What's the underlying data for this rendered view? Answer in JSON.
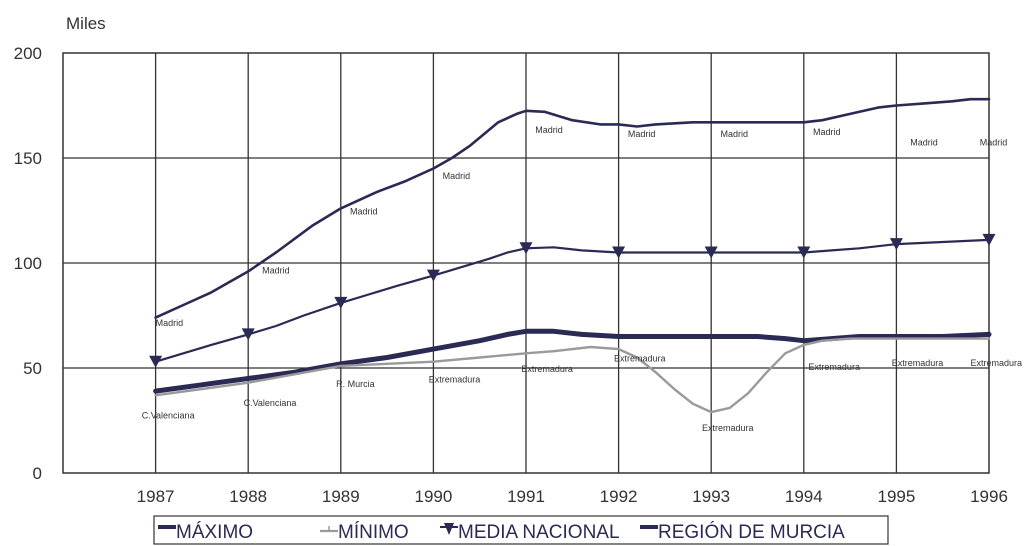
{
  "chart_data": {
    "type": "line",
    "unit_label": "Miles",
    "x": [
      1987,
      1988,
      1989,
      1990,
      1991,
      1992,
      1993,
      1994,
      1995,
      1996
    ],
    "x_tick_labels": [
      "1987",
      "1988",
      "1989",
      "1990",
      "1991",
      "1992",
      "1993",
      "1994",
      "1995",
      "1996"
    ],
    "y_tick_labels": [
      "0",
      "50",
      "100",
      "150",
      "200"
    ],
    "ylim": [
      0,
      200
    ],
    "xlim": [
      1986,
      1996
    ],
    "grid": true,
    "legend_position": "bottom",
    "series": [
      {
        "name": "MÁXIMO",
        "color": "#2a2a55",
        "x": [
          1987,
          1987.3,
          1987.6,
          1988,
          1988.3,
          1988.7,
          1989,
          1989.4,
          1989.7,
          1990,
          1990.2,
          1990.4,
          1990.7,
          1990.9,
          1991,
          1991.2,
          1991.5,
          1991.8,
          1992,
          1992.2,
          1992.4,
          1992.8,
          1993,
          1993.3,
          1993.6,
          1994,
          1994.2,
          1994.5,
          1994.8,
          1995,
          1995.3,
          1995.6,
          1995.8,
          1996
        ],
        "values": [
          74,
          80,
          86,
          96,
          105,
          118,
          126,
          134,
          139,
          145,
          150,
          156,
          167,
          171,
          172.5,
          172,
          168,
          166,
          166,
          165,
          166,
          167,
          167,
          167,
          167,
          167,
          168,
          171,
          174,
          175,
          176,
          177,
          178,
          178
        ]
      },
      {
        "name": "MÍNIMO",
        "color": "#9a9a9a",
        "x": [
          1987,
          1987.5,
          1988,
          1988.5,
          1989,
          1989.5,
          1990,
          1990.5,
          1991,
          1991.3,
          1991.7,
          1992,
          1992.2,
          1992.4,
          1992.6,
          1992.8,
          1993,
          1993.2,
          1993.4,
          1993.6,
          1993.8,
          1994,
          1994.2,
          1994.5,
          1995,
          1995.5,
          1996
        ],
        "values": [
          37,
          40,
          43,
          47,
          51,
          52,
          53,
          55,
          57,
          58,
          60,
          59,
          55,
          48,
          40,
          33,
          29,
          31,
          38,
          48,
          57,
          61,
          63,
          64,
          64,
          64,
          64
        ]
      },
      {
        "name": "MEDIA NACIONAL",
        "color": "#2a2a55",
        "marker": "triangle-down",
        "x": [
          1987,
          1987.3,
          1987.6,
          1988,
          1988.3,
          1988.6,
          1989,
          1989.3,
          1989.6,
          1990,
          1990.3,
          1990.6,
          1990.8,
          1991,
          1991.3,
          1991.6,
          1992,
          1992.5,
          1993,
          1993.5,
          1994,
          1994.3,
          1994.6,
          1995,
          1995.5,
          1996
        ],
        "values": [
          53,
          57,
          61,
          66,
          70,
          75,
          81,
          85,
          89,
          94,
          98,
          102,
          105,
          107,
          107.5,
          106,
          105,
          105,
          105,
          105,
          105,
          106,
          107,
          109,
          110,
          111
        ]
      },
      {
        "name": "REGIÓN DE MURCIA",
        "color": "#2a2a55",
        "x": [
          1987,
          1987.5,
          1988,
          1988.5,
          1989,
          1989.5,
          1990,
          1990.5,
          1990.8,
          1991,
          1991.3,
          1991.6,
          1992,
          1992.5,
          1993,
          1993.5,
          1993.8,
          1994,
          1994.3,
          1994.6,
          1995,
          1995.5,
          1996
        ],
        "values": [
          39,
          42,
          45,
          48,
          52,
          55,
          59,
          63,
          66,
          67.5,
          67.5,
          66,
          65,
          65,
          65,
          65,
          64,
          63,
          64,
          65,
          65,
          65,
          66
        ]
      }
    ],
    "annotations": [
      {
        "text": "Madrid",
        "x": 1987,
        "y": 70
      },
      {
        "text": "Madrid",
        "x": 1988.15,
        "y": 95
      },
      {
        "text": "Madrid",
        "x": 1989.1,
        "y": 123
      },
      {
        "text": "Madrid",
        "x": 1990.1,
        "y": 140
      },
      {
        "text": "Madrid",
        "x": 1991.1,
        "y": 162
      },
      {
        "text": "Madrid",
        "x": 1992.1,
        "y": 160
      },
      {
        "text": "Madrid",
        "x": 1993.1,
        "y": 160
      },
      {
        "text": "Madrid",
        "x": 1994.1,
        "y": 161
      },
      {
        "text": "Madrid",
        "x": 1995.15,
        "y": 156
      },
      {
        "text": "Madrid",
        "x": 1995.9,
        "y": 156
      },
      {
        "text": "C.Valenciana",
        "x": 1986.85,
        "y": 26
      },
      {
        "text": "C.Valenciana",
        "x": 1987.95,
        "y": 32
      },
      {
        "text": "R. Murcia",
        "x": 1988.95,
        "y": 41
      },
      {
        "text": "Extremadura",
        "x": 1989.95,
        "y": 43
      },
      {
        "text": "Extremadura",
        "x": 1990.95,
        "y": 48
      },
      {
        "text": "Extremadura",
        "x": 1991.95,
        "y": 53
      },
      {
        "text": "Extremadura",
        "x": 1992.9,
        "y": 20
      },
      {
        "text": "Extremadura",
        "x": 1994.05,
        "y": 49
      },
      {
        "text": "Extremadura",
        "x": 1994.95,
        "y": 51
      },
      {
        "text": "Extremadura",
        "x": 1995.8,
        "y": 51
      }
    ]
  }
}
